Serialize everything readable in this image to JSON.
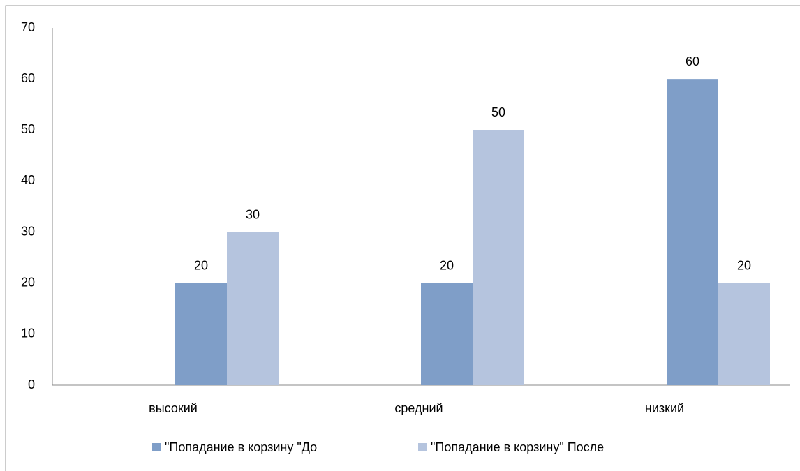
{
  "chart_data": {
    "type": "bar",
    "categories": [
      "высокий",
      "средний",
      "низкий"
    ],
    "series": [
      {
        "name": "\"Попадание в корзину \"До",
        "color": "#7f9ec8",
        "values": [
          20,
          20,
          60
        ]
      },
      {
        "name": "\"Попадание в корзину\" После",
        "color": "#b5c4de",
        "values": [
          30,
          50,
          20
        ]
      }
    ],
    "ylim": [
      0,
      70
    ],
    "yticks": [
      0,
      10,
      20,
      30,
      40,
      50,
      60,
      70
    ],
    "grid": false,
    "legend": "bottom"
  }
}
